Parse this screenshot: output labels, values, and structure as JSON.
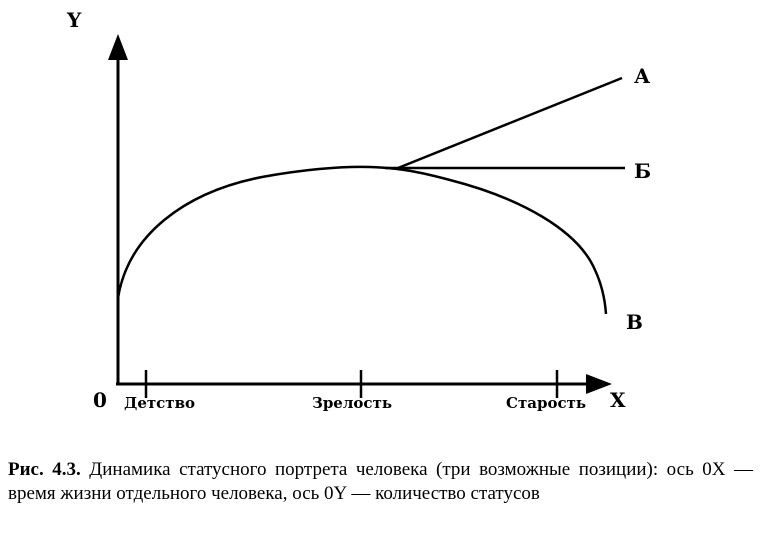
{
  "axes": {
    "y_label": "Y",
    "x_label": "X",
    "origin_label": "0"
  },
  "ticks": [
    {
      "label": "Детство"
    },
    {
      "label": "Зрелость"
    },
    {
      "label": "Старость"
    }
  ],
  "curves": {
    "a_label": "А",
    "b_label": "Б",
    "v_label": "В"
  },
  "caption": {
    "number": "Рис. 4.3.",
    "text": "Динамика статусного портрета человека (три возможные позиции): ось 0X — время жизни отдельного человека, ось 0Y — количество статусов"
  }
}
